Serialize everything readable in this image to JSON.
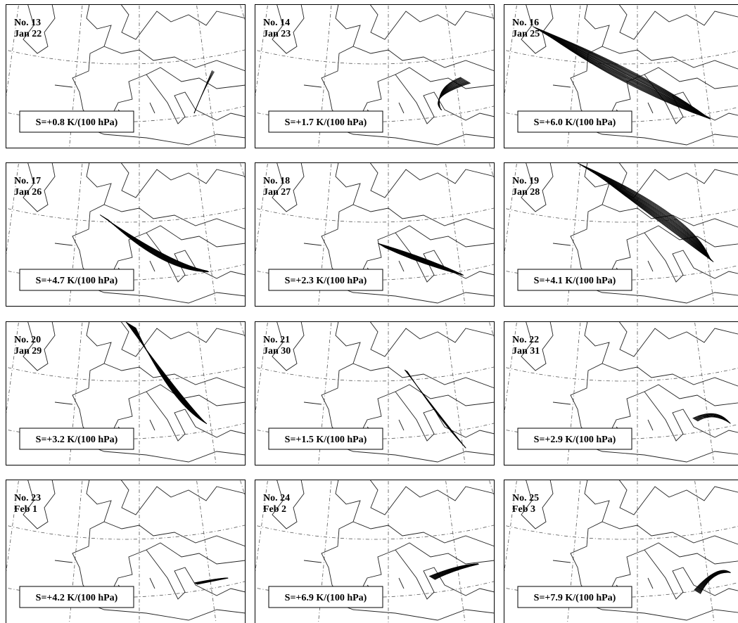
{
  "panels": [
    {
      "number": "No. 13",
      "date": "Jan 22",
      "stability": "S=+0.8 K/(100 hPa)"
    },
    {
      "number": "No. 14",
      "date": "Jan 23",
      "stability": "S=+1.7 K/(100 hPa)"
    },
    {
      "number": "No. 16",
      "date": "Jan 25",
      "stability": "S=+6.0 K/(100 hPa)"
    },
    {
      "number": "No. 17",
      "date": "Jan 26",
      "stability": "S=+4.7 K/(100 hPa)"
    },
    {
      "number": "No. 18",
      "date": "Jan 27",
      "stability": "S=+2.3 K/(100 hPa)"
    },
    {
      "number": "No. 19",
      "date": "Jan 28",
      "stability": "S=+4.1 K/(100 hPa)"
    },
    {
      "number": "No. 20",
      "date": "Jan 29",
      "stability": "S=+3.2 K/(100 hPa)"
    },
    {
      "number": "No. 21",
      "date": "Jan 30",
      "stability": "S=+1.5 K/(100 hPa)"
    },
    {
      "number": "No. 22",
      "date": "Jan 31",
      "stability": "S=+2.9 K/(100 hPa)"
    },
    {
      "number": "No. 23",
      "date": "Feb 1",
      "stability": "S=+4.2 K/(100 hPa)"
    },
    {
      "number": "No. 24",
      "date": "Feb 2",
      "stability": "S=+6.9 K/(100 hPa)"
    },
    {
      "number": "No. 25",
      "date": "Feb 3",
      "stability": "S=+7.9 K/(100 hPa)"
    }
  ]
}
